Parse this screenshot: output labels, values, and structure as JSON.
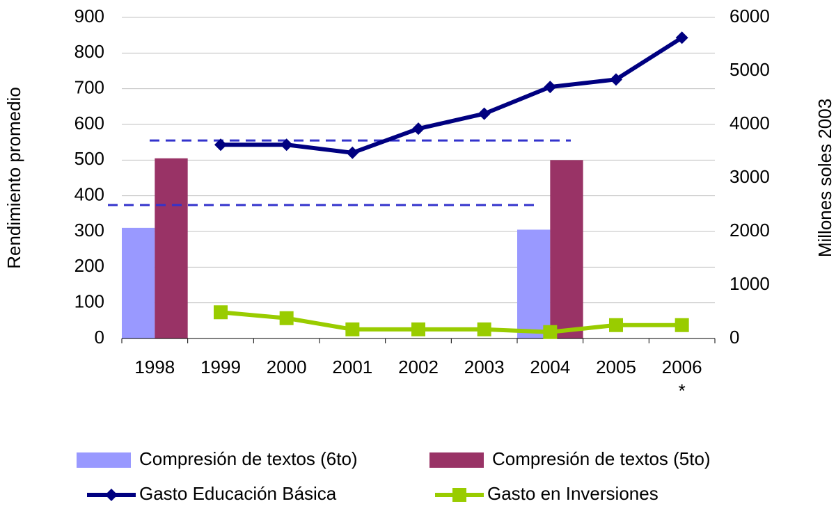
{
  "chart_data": {
    "type": "bar_line",
    "y_axis_label": "Rendimiento promedio",
    "y2_axis_label": "Millones soles 2003",
    "categories": [
      "1998",
      "1999",
      "2000",
      "2001",
      "2002",
      "2003",
      "2004",
      "2005",
      "2006\n*"
    ],
    "series": [
      {
        "name": "Compresión de textos (6to)",
        "type": "bar",
        "color": "#9999ff",
        "values": [
          310,
          null,
          null,
          null,
          null,
          null,
          305,
          null,
          null
        ]
      },
      {
        "name": "Compresión de textos (5to)",
        "type": "bar",
        "color": "#993366",
        "values": [
          505,
          null,
          null,
          null,
          null,
          null,
          500,
          null,
          null
        ]
      },
      {
        "name": "Gasto Educación Básica",
        "type": "line",
        "marker": "diamond",
        "axis": "y2",
        "color": "#000080",
        "values": [
          null,
          3620,
          3620,
          3470,
          3920,
          4200,
          4700,
          4840,
          5620
        ]
      },
      {
        "name": "Gasto en Inversiones",
        "type": "line",
        "marker": "square",
        "axis": "y2",
        "color": "#99cc00",
        "values": [
          null,
          490,
          380,
          170,
          170,
          170,
          120,
          250,
          250
        ]
      }
    ],
    "reference_lines": [
      {
        "value": 555,
        "color": "#3333cc"
      },
      {
        "value": 374,
        "color": "#3333cc"
      }
    ],
    "ylim": [
      0,
      900
    ],
    "yticks": [
      0,
      100,
      200,
      300,
      400,
      500,
      600,
      700,
      800,
      900
    ],
    "y2lim": [
      0,
      6000
    ],
    "y2ticks": [
      0,
      1000,
      2000,
      3000,
      4000,
      5000,
      6000
    ],
    "grid": true
  }
}
